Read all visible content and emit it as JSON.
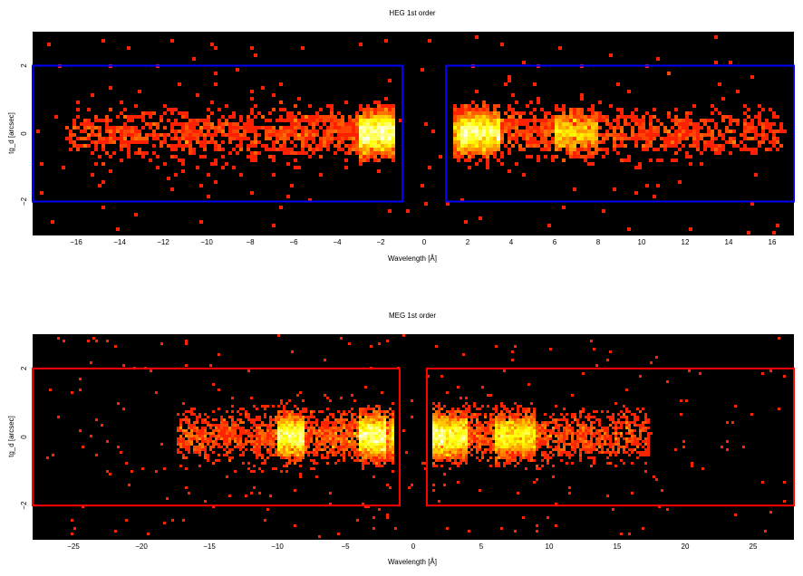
{
  "chart_data": [
    {
      "type": "heatmap",
      "title": "HEG 1st order",
      "xlabel": "Wavelength [Å]",
      "ylabel": "tg_d [arcsec]",
      "xlim": [
        -18,
        17
      ],
      "ylim": [
        -3,
        3
      ],
      "xticks": [
        -16,
        -14,
        -12,
        -10,
        -8,
        -6,
        -4,
        -2,
        0,
        2,
        4,
        6,
        8,
        10,
        12,
        14,
        16
      ],
      "yticks": [
        -2,
        0,
        2
      ],
      "colormap": "hot",
      "background": "#000000",
      "extraction_regions": {
        "color": "#0000ff",
        "boxes": [
          {
            "x": [
              -18,
              -1
            ],
            "y": [
              -2,
              2
            ]
          },
          {
            "x": [
              1,
              17
            ],
            "y": [
              -2,
              2
            ]
          }
        ]
      },
      "count_peaks": [
        {
          "x_range": [
            -3,
            -1.4
          ],
          "y_center": 0,
          "level": "high"
        },
        {
          "x_range": [
            1.6,
            3.5
          ],
          "y_center": 0,
          "level": "high"
        },
        {
          "x_range": [
            6,
            8
          ],
          "y_center": 0,
          "level": "medium"
        }
      ]
    },
    {
      "type": "heatmap",
      "title": "MEG 1st order",
      "xlabel": "Wavelength [Å]",
      "ylabel": "tg_d [arcsec]",
      "xlim": [
        -28,
        28
      ],
      "ylim": [
        -3,
        3
      ],
      "xticks": [
        -25,
        -20,
        -15,
        -10,
        -5,
        0,
        5,
        10,
        15,
        20,
        25
      ],
      "yticks": [
        -2,
        0,
        2
      ],
      "colormap": "hot",
      "background": "#000000",
      "extraction_regions": {
        "color": "#ff0000",
        "boxes": [
          {
            "x": [
              -28,
              -1
            ],
            "y": [
              -2,
              2
            ]
          },
          {
            "x": [
              1,
              28
            ],
            "y": [
              -2,
              2
            ]
          }
        ]
      },
      "count_peaks": [
        {
          "x_range": [
            -10,
            -8
          ],
          "y_center": 0,
          "level": "high"
        },
        {
          "x_range": [
            -4,
            -2
          ],
          "y_center": 0,
          "level": "high"
        },
        {
          "x_range": [
            1.5,
            4
          ],
          "y_center": 0,
          "level": "high"
        },
        {
          "x_range": [
            6,
            9
          ],
          "y_center": 0,
          "level": "high"
        }
      ]
    }
  ]
}
